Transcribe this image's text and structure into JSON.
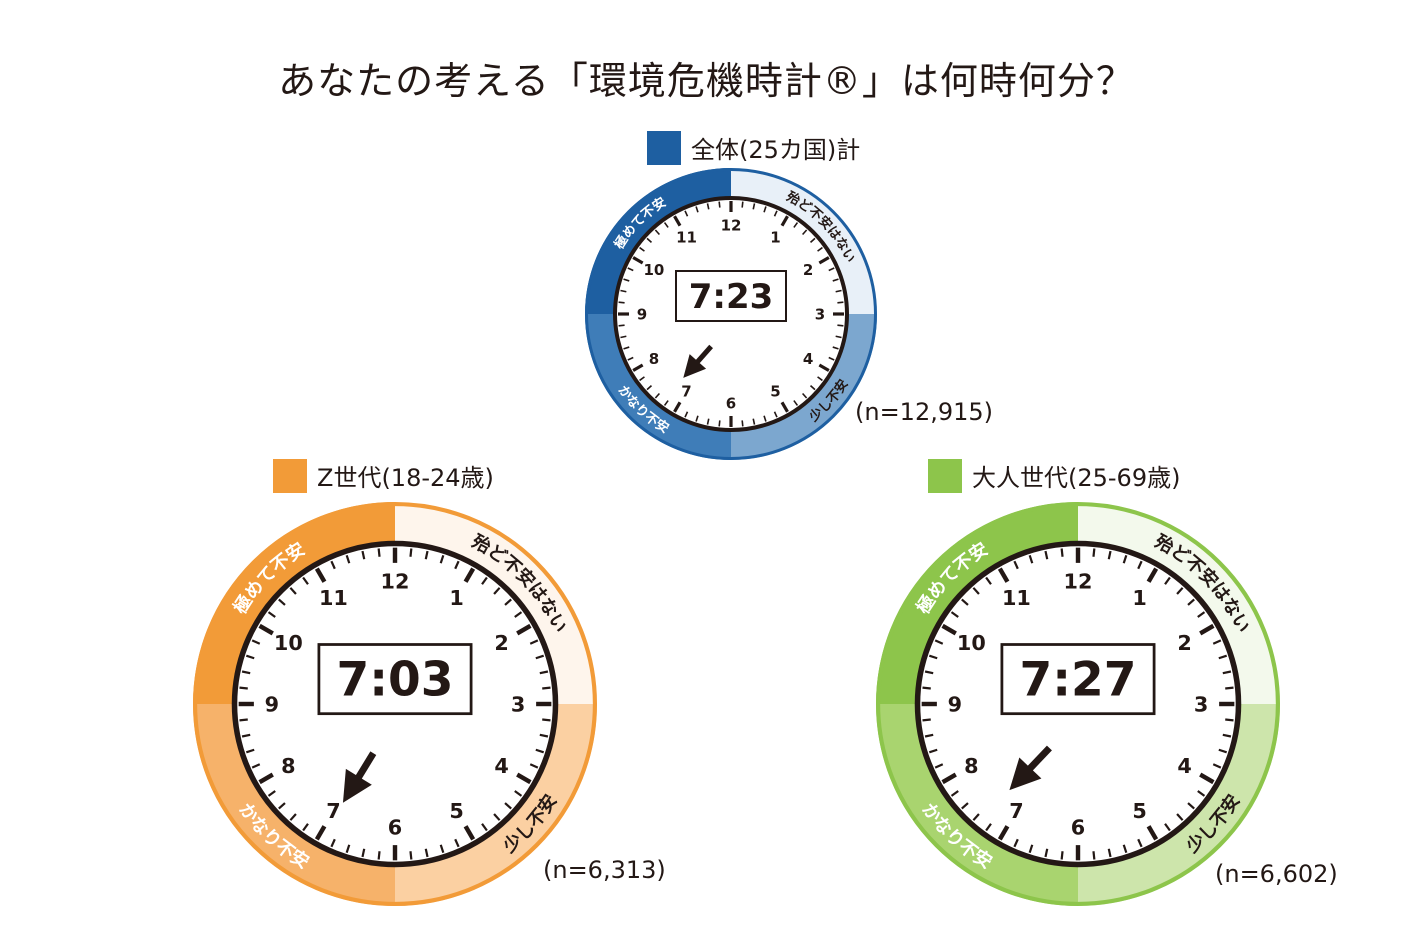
{
  "title": "あなたの考える「環境危機時計®」は何時何分？",
  "clocks": [
    {
      "legend": "全体(25カ国)計",
      "time": "7:23",
      "n": "(n=12,915)",
      "colors": {
        "dark": "#1e5fa1",
        "mid": "#3f7db8",
        "light": "#7ca7cf",
        "pale": "#e8f0f8",
        "border": "#1e5fa1"
      }
    },
    {
      "legend": "Z世代(18-24歳)",
      "time": "7:03",
      "n": "(n=6,313)",
      "colors": {
        "dark": "#f29b38",
        "mid": "#f6b26a",
        "light": "#fbd0a2",
        "pale": "#fef5ec",
        "border": "#f29b38"
      }
    },
    {
      "legend": "大人世代(25-69歳)",
      "time": "7:27",
      "n": "(n=6,602)",
      "colors": {
        "dark": "#8dc54b",
        "mid": "#a9d46f",
        "light": "#cde5ab",
        "pale": "#f3f9ec",
        "border": "#8dc54b"
      }
    }
  ],
  "segments": {
    "q1": "殆ど不安はない",
    "q2": "少し不安",
    "q3": "かなり不安",
    "q4": "極めて不安"
  },
  "hour_numbers": [
    "12",
    "1",
    "2",
    "3",
    "4",
    "5",
    "6",
    "7",
    "8",
    "9",
    "10",
    "11"
  ]
}
